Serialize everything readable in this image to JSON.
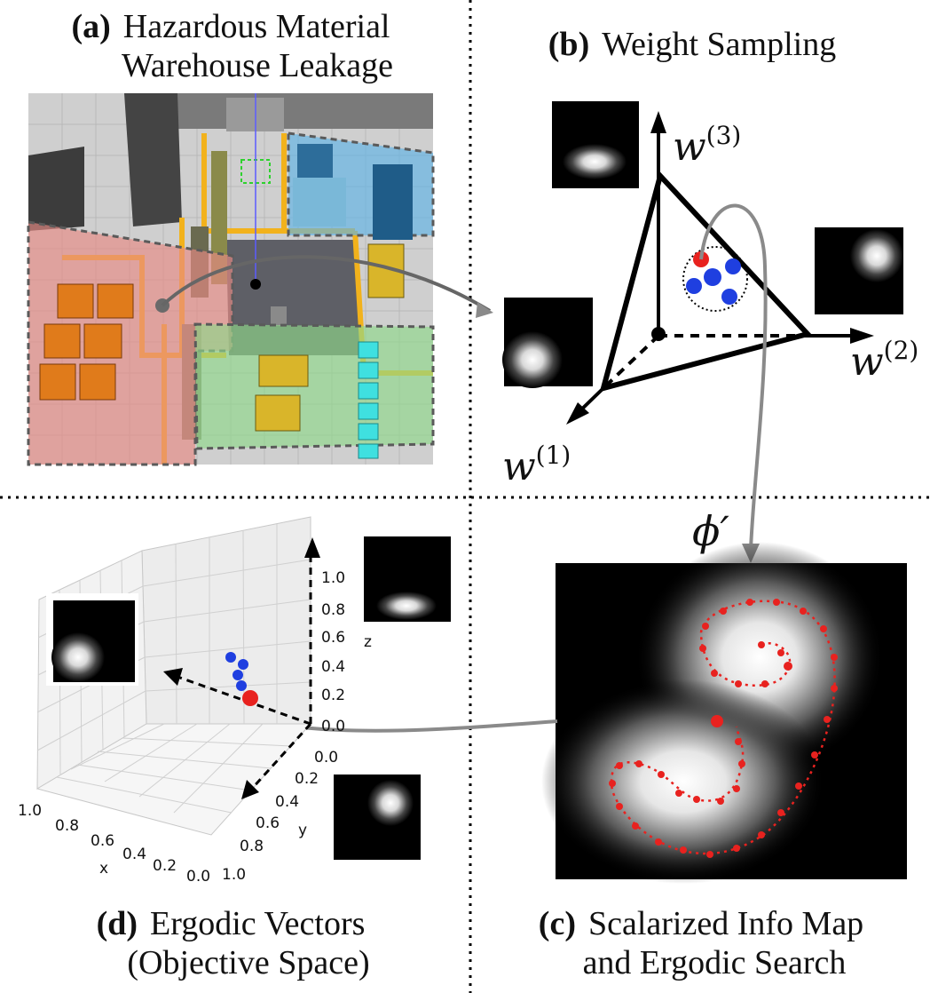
{
  "panel_a": {
    "letter": "(a)",
    "title_line1": "Hazardous Material",
    "title_line2": "Warehouse Leakage"
  },
  "panel_b": {
    "letter": "(b)",
    "title": "Weight Sampling",
    "axis_w1": "w",
    "axis_w2": "w",
    "axis_w3": "w",
    "sup_w1": "(1)",
    "sup_w2": "(2)",
    "sup_w3": "(3)",
    "phi_label": "ϕ′"
  },
  "panel_c": {
    "letter": "(c)",
    "title_line1": "Scalarized Info Map",
    "title_line2": "and Ergodic Search"
  },
  "panel_d": {
    "letter": "(d)",
    "title_line1": "Ergodic Vectors",
    "title_line2": "(Objective Space)",
    "x_label": "x",
    "y_label": "y",
    "z_label": "z",
    "x_ticks": [
      "1.0",
      "0.8",
      "0.6",
      "0.4",
      "0.2",
      "0.0"
    ],
    "y_ticks": [
      "0.0",
      "0.2",
      "0.4",
      "0.6",
      "0.8",
      "1.0"
    ],
    "z_ticks": [
      "0.0",
      "0.2",
      "0.4",
      "0.6",
      "0.8",
      "1.0"
    ]
  },
  "colors": {
    "red_point": "#e8221f",
    "blue_point": "#1f3fe0",
    "arrow_gray": "#8a8a8a",
    "zone_red": "#e88b84",
    "zone_blue": "#5fb3e6",
    "zone_green": "#8fd88a"
  }
}
